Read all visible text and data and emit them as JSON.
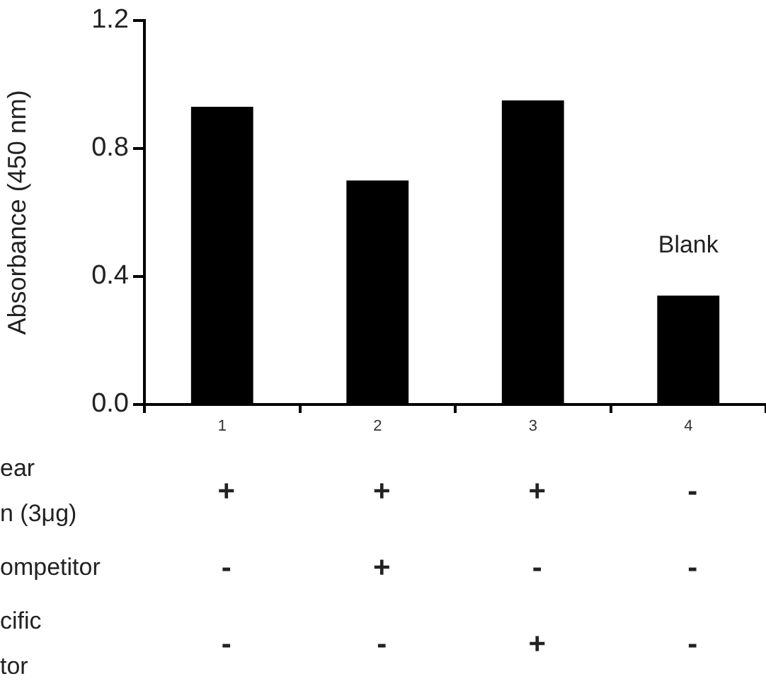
{
  "chart_data": {
    "type": "bar",
    "ylabel": "Absorbance (450 nm)",
    "categories": [
      "1",
      "2",
      "3",
      "4"
    ],
    "values": [
      0.93,
      0.7,
      0.95,
      0.34
    ],
    "color": "#000000",
    "ylim": [
      0,
      1.2
    ],
    "yticks": [
      {
        "value": 0,
        "label": "0.0"
      },
      {
        "value": 0.4,
        "label": "0.4"
      },
      {
        "value": 0.8,
        "label": "0.8"
      },
      {
        "value": 1.2,
        "label": "1.2"
      }
    ],
    "grid": false,
    "legend": false,
    "annotations": [
      "Blank",
      "ear\nn (3μg)",
      "+",
      "+",
      "+",
      "-",
      "ompetitor",
      "-",
      "+",
      "-",
      "-",
      "cific\ntor",
      "-",
      "-",
      "+",
      "-"
    ]
  }
}
